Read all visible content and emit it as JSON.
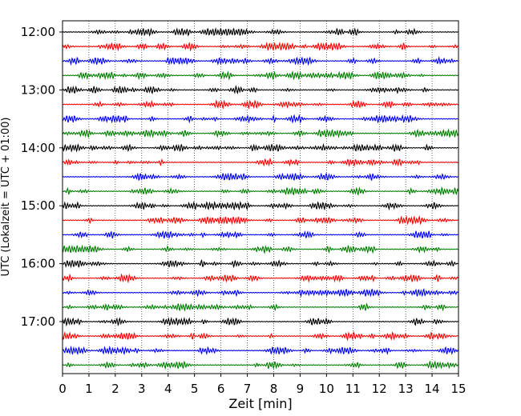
{
  "chart_data": {
    "type": "line",
    "title": "",
    "xlabel": "Zeit  [min]",
    "ylabel": "UTC (Lokalzeit = UTC + 01:00)",
    "xlim": [
      0,
      15
    ],
    "x_ticks": [
      "0",
      "1",
      "2",
      "3",
      "4",
      "5",
      "6",
      "7",
      "8",
      "9",
      "10",
      "11",
      "12",
      "13",
      "14",
      "15"
    ],
    "hour_labels": [
      "12:00",
      "13:00",
      "14:00",
      "15:00",
      "16:00",
      "17:00"
    ],
    "trace_colors": [
      "#000000",
      "#ff0000",
      "#0000ff",
      "#007f00"
    ],
    "grid": "vertical dotted",
    "rows": [
      {
        "time": "12:00"
      },
      {
        "time": "12:15"
      },
      {
        "time": "12:30"
      },
      {
        "time": "12:45"
      },
      {
        "time": "13:00"
      },
      {
        "time": "13:15"
      },
      {
        "time": "13:30"
      },
      {
        "time": "13:45"
      },
      {
        "time": "14:00"
      },
      {
        "time": "14:15"
      },
      {
        "time": "14:30"
      },
      {
        "time": "14:45"
      },
      {
        "time": "15:00"
      },
      {
        "time": "15:15"
      },
      {
        "time": "15:30"
      },
      {
        "time": "15:45"
      },
      {
        "time": "16:00"
      },
      {
        "time": "16:15"
      },
      {
        "time": "16:30"
      },
      {
        "time": "16:45"
      },
      {
        "time": "17:00"
      },
      {
        "time": "17:15"
      },
      {
        "time": "17:30"
      },
      {
        "time": "17:45"
      }
    ]
  }
}
